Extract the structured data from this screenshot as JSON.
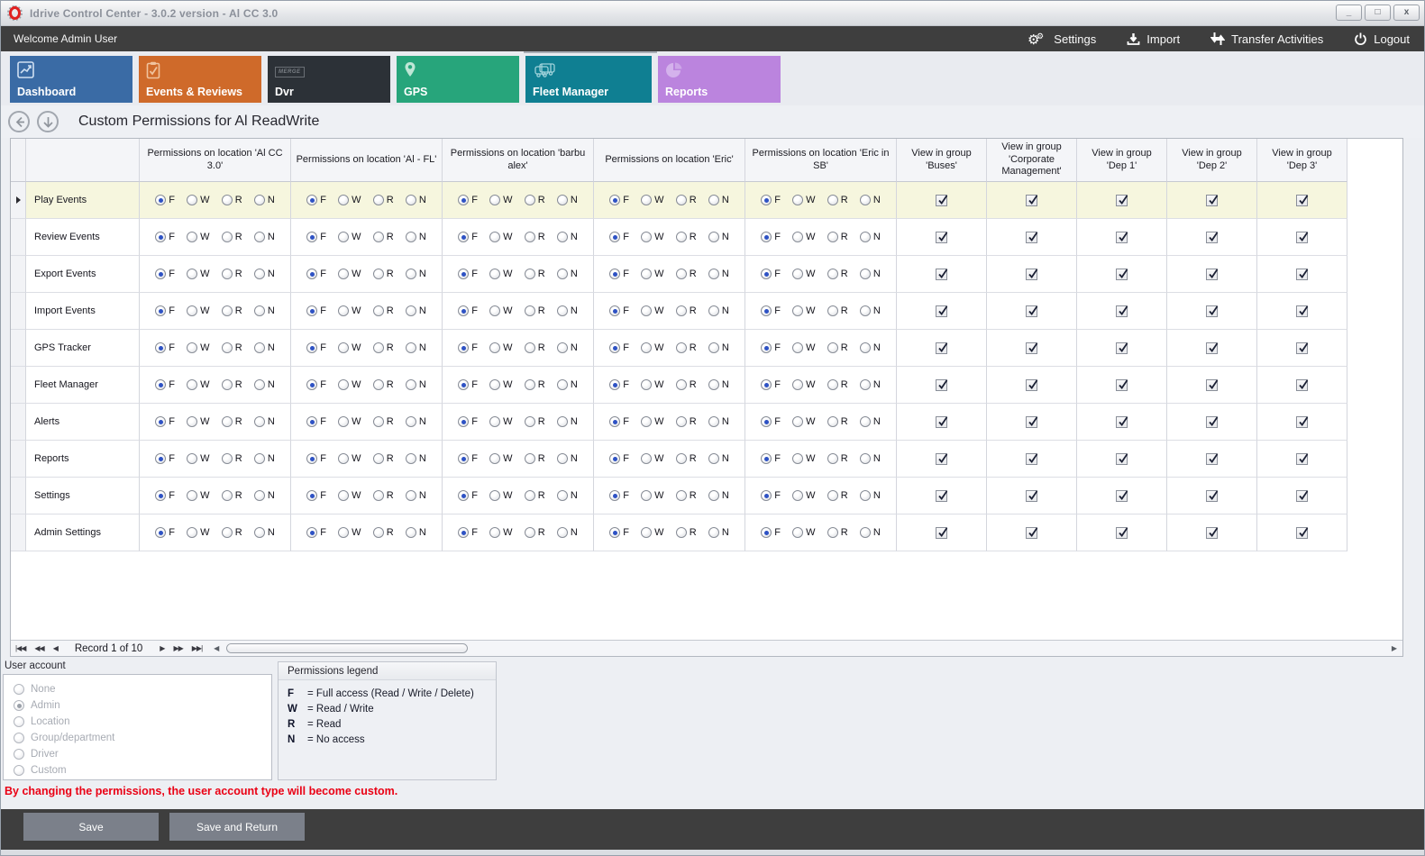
{
  "window": {
    "title": "Idrive Control Center - 3.0.2 version - Al CC 3.0",
    "controls": {
      "minimize": "_",
      "maximize": "□",
      "close": "x"
    }
  },
  "topbar": {
    "welcome": "Welcome Admin User",
    "actions": [
      {
        "label": "Settings",
        "icon": "gears-icon"
      },
      {
        "label": "Import",
        "icon": "import-icon"
      },
      {
        "label": "Transfer Activities",
        "icon": "transfer-icon"
      },
      {
        "label": "Logout",
        "icon": "power-icon"
      }
    ]
  },
  "tabs": [
    {
      "label": "Dashboard",
      "icon": "chart-icon",
      "color": "#3a6ba5",
      "selected": false
    },
    {
      "label": "Events & Reviews",
      "icon": "clipboard-check-icon",
      "color": "#cf6a2a",
      "selected": false
    },
    {
      "label": "Dvr",
      "icon": "merge-badge-icon",
      "badge": "MERGE",
      "color": "#2c3137",
      "selected": false
    },
    {
      "label": "GPS",
      "icon": "map-pin-icon",
      "color": "#27a57b",
      "selected": false
    },
    {
      "label": "Fleet Manager",
      "icon": "vehicles-icon",
      "color": "#0f7f92",
      "selected": true
    },
    {
      "label": "Reports",
      "icon": "pie-chart-icon",
      "color": "#bb84de",
      "selected": false
    }
  ],
  "page": {
    "title": "Custom Permissions for Al ReadWrite"
  },
  "grid": {
    "location_columns": [
      "Permissions on location 'Al CC 3.0'",
      "Permissions on location 'Al - FL'",
      "Permissions on location 'barbu alex'",
      "Permissions on location 'Eric'",
      "Permissions on location 'Eric in SB'"
    ],
    "group_columns": [
      "View in group 'Buses'",
      "View in group 'Corporate Management'",
      "View in group 'Dep 1'",
      "View in group 'Dep 2'",
      "View in group 'Dep 3'"
    ],
    "permission_options": [
      "F",
      "W",
      "R",
      "N"
    ],
    "selected_option": "F",
    "group_checked": true,
    "rows": [
      "Play Events",
      "Review Events",
      "Export Events",
      "Import Events",
      "GPS Tracker",
      "Fleet Manager",
      "Alerts",
      "Reports",
      "Settings",
      "Admin Settings"
    ],
    "selected_row_index": 0,
    "record_status": "Record 1 of 10"
  },
  "user_account": {
    "label": "User account",
    "options": [
      "None",
      "Admin",
      "Location",
      "Group/department",
      "Driver",
      "Custom"
    ],
    "selected": "Admin"
  },
  "legend": {
    "title": "Permissions legend",
    "entries": [
      {
        "key": "F",
        "value": "= Full access (Read / Write / Delete)"
      },
      {
        "key": "W",
        "value": "= Read / Write"
      },
      {
        "key": "R",
        "value": "= Read"
      },
      {
        "key": "N",
        "value": "= No access"
      }
    ]
  },
  "warning": "By changing the permissions, the user account type will become custom.",
  "footer": {
    "save": "Save",
    "save_return": "Save and Return"
  },
  "colors": {
    "dark_bar": "#3e3e3e",
    "selected_row": "#f6f6de",
    "radio_selected": "#2e52c4",
    "warning_red": "#ea0014",
    "button_gray": "#7b808a"
  }
}
